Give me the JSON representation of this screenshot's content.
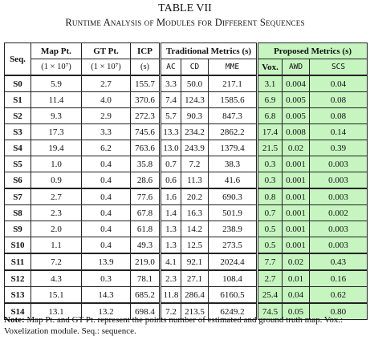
{
  "caption": {
    "number": "TABLE VII",
    "title": "Runtime Analysis of Modules for Different Sequences"
  },
  "header": {
    "seq": "Seq.",
    "map_pt": "Map Pt.",
    "gt_pt": "GT Pt.",
    "icp": "ICP",
    "traditional": "Traditional Metrics (s)",
    "proposed": "Proposed Metrics (s)",
    "map_unit": "(1 × 10⁷)",
    "gt_unit": "(1 × 10⁷)",
    "icp_unit": "(s)",
    "ac": "AC",
    "cd": "CD",
    "mme": "MME",
    "vox": "Vox.",
    "awd": "AWD",
    "scs": "SCS"
  },
  "rows": [
    {
      "seq": "S0",
      "map": "5.9",
      "gt": "2.7",
      "icp": "155.7",
      "ac": "3.3",
      "cd": "50.0",
      "mme": "217.1",
      "vox": "3.1",
      "awd": "0.004",
      "scs": "0.04"
    },
    {
      "seq": "S1",
      "map": "11.4",
      "gt": "4.0",
      "icp": "370.6",
      "ac": "7.4",
      "cd": "124.3",
      "mme": "1585.6",
      "vox": "6.9",
      "awd": "0.005",
      "scs": "0.08"
    },
    {
      "seq": "S2",
      "map": "9.3",
      "gt": "2.9",
      "icp": "272.3",
      "ac": "5.7",
      "cd": "90.3",
      "mme": "847.3",
      "vox": "6.8",
      "awd": "0.005",
      "scs": "0.08"
    },
    {
      "seq": "S3",
      "map": "17.3",
      "gt": "3.3",
      "icp": "745.6",
      "ac": "13.3",
      "cd": "234.2",
      "mme": "2862.2",
      "vox": "17.4",
      "awd": "0.008",
      "scs": "0.14"
    },
    {
      "seq": "S4",
      "map": "19.4",
      "gt": "6.2",
      "icp": "763.6",
      "ac": "13.0",
      "cd": "243.9",
      "mme": "1379.4",
      "vox": "21.5",
      "awd": "0.02",
      "scs": "0.39"
    },
    {
      "seq": "S5",
      "map": "1.0",
      "gt": "0.4",
      "icp": "35.8",
      "ac": "0.7",
      "cd": "7.2",
      "mme": "38.3",
      "vox": "0.3",
      "awd": "0.001",
      "scs": "0.003"
    },
    {
      "seq": "S6",
      "map": "0.9",
      "gt": "0.4",
      "icp": "28.6",
      "ac": "0.6",
      "cd": "11.3",
      "mme": "41.6",
      "vox": "0.3",
      "awd": "0.001",
      "scs": "0.003"
    },
    {
      "seq": "S7",
      "map": "2.7",
      "gt": "0.4",
      "icp": "77.6",
      "ac": "1.6",
      "cd": "20.2",
      "mme": "690.3",
      "vox": "0.8",
      "awd": "0.001",
      "scs": "0.003"
    },
    {
      "seq": "S8",
      "map": "2.3",
      "gt": "0.4",
      "icp": "67.8",
      "ac": "1.4",
      "cd": "16.3",
      "mme": "501.9",
      "vox": "0.7",
      "awd": "0.001",
      "scs": "0.002"
    },
    {
      "seq": "S9",
      "map": "2.0",
      "gt": "0.4",
      "icp": "61.8",
      "ac": "1.3",
      "cd": "14.2",
      "mme": "238.9",
      "vox": "0.5",
      "awd": "0.001",
      "scs": "0.003"
    },
    {
      "seq": "S10",
      "map": "1.1",
      "gt": "0.4",
      "icp": "49.3",
      "ac": "1.3",
      "cd": "12.5",
      "mme": "273.5",
      "vox": "0.5",
      "awd": "0.001",
      "scs": "0.003"
    },
    {
      "seq": "S11",
      "map": "7.2",
      "gt": "13.9",
      "icp": "219.0",
      "ac": "4.1",
      "cd": "92.1",
      "mme": "2024.4",
      "vox": "7.7",
      "awd": "0.02",
      "scs": "0.43"
    },
    {
      "seq": "S12",
      "map": "4.3",
      "gt": "0.3",
      "icp": "78.1",
      "ac": "2.3",
      "cd": "27.1",
      "mme": "108.4",
      "vox": "2.7",
      "awd": "0.01",
      "scs": "0.16"
    },
    {
      "seq": "S13",
      "map": "15.1",
      "gt": "14.3",
      "icp": "685.2",
      "ac": "11.8",
      "cd": "286.4",
      "mme": "6160.5",
      "vox": "25.4",
      "awd": "0.04",
      "scs": "0.62"
    },
    {
      "seq": "S14",
      "map": "13.1",
      "gt": "13.2",
      "icp": "698.4",
      "ac": "7.2",
      "cd": "213.5",
      "mme": "6249.2",
      "vox": "74.5",
      "awd": "0.05",
      "scs": "0.80"
    }
  ],
  "note": {
    "label": "Note:",
    "text": "Map Pt. and GT Pt. represent the points number of estimated and ground truth map. Vox.: Voxelization module. Seq.: sequence."
  },
  "colors": {
    "proposed_highlight": "#c6f5c0"
  }
}
